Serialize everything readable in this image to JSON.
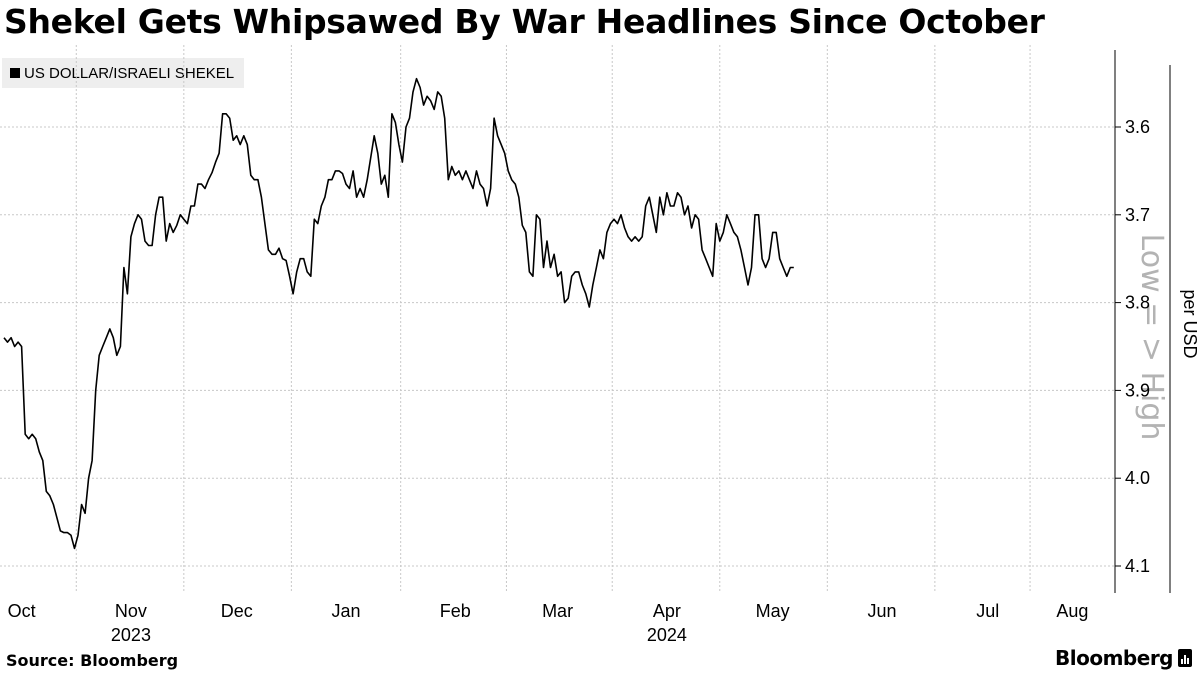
{
  "title": "Shekel Gets Whipsawed By War Headlines Since October",
  "legend": {
    "label": "US DOLLAR/ISRAELI SHEKEL",
    "color": "#000000"
  },
  "source": "Source: Bloomberg",
  "brand": "Bloomberg",
  "chart_data": {
    "type": "line",
    "title": "Shekel Gets Whipsawed By War Headlines Since October",
    "ylabel": "per USD",
    "ylabel_annotation": "Low = > High",
    "y_inverted": true,
    "ylim": [
      3.52,
      4.12
    ],
    "yticks": [
      3.6,
      3.7,
      3.8,
      3.9,
      4.0,
      4.1
    ],
    "xlim": [
      0,
      308
    ],
    "x_ticks": [
      {
        "x": 5,
        "label": "Oct"
      },
      {
        "x": 36,
        "label": "Nov"
      },
      {
        "x": 66,
        "label": "Dec"
      },
      {
        "x": 97,
        "label": "Jan"
      },
      {
        "x": 128,
        "label": "Feb"
      },
      {
        "x": 157,
        "label": "Mar"
      },
      {
        "x": 188,
        "label": "Apr"
      },
      {
        "x": 218,
        "label": "May"
      },
      {
        "x": 249,
        "label": "Jun"
      },
      {
        "x": 279,
        "label": "Jul"
      },
      {
        "x": 303,
        "label": "Aug"
      }
    ],
    "year_labels": [
      {
        "x": 36,
        "label": "2023"
      },
      {
        "x": 188,
        "label": "2024"
      }
    ],
    "grid": true,
    "series": [
      {
        "name": "US DOLLAR/ISRAELI SHEKEL",
        "color": "#000000",
        "points": [
          [
            0,
            3.84
          ],
          [
            1,
            3.845
          ],
          [
            2,
            3.84
          ],
          [
            3,
            3.85
          ],
          [
            4,
            3.845
          ],
          [
            5,
            3.85
          ],
          [
            6,
            3.95
          ],
          [
            7,
            3.955
          ],
          [
            8,
            3.95
          ],
          [
            9,
            3.955
          ],
          [
            10,
            3.97
          ],
          [
            11,
            3.98
          ],
          [
            12,
            4.015
          ],
          [
            13,
            4.02
          ],
          [
            14,
            4.03
          ],
          [
            15,
            4.045
          ],
          [
            16,
            4.06
          ],
          [
            17,
            4.062
          ],
          [
            18,
            4.062
          ],
          [
            19,
            4.065
          ],
          [
            20,
            4.08
          ],
          [
            21,
            4.065
          ],
          [
            22,
            4.03
          ],
          [
            23,
            4.04
          ],
          [
            24,
            4.0
          ],
          [
            25,
            3.98
          ],
          [
            26,
            3.9
          ],
          [
            27,
            3.86
          ],
          [
            28,
            3.85
          ],
          [
            29,
            3.84
          ],
          [
            30,
            3.83
          ],
          [
            31,
            3.84
          ],
          [
            32,
            3.86
          ],
          [
            33,
            3.85
          ],
          [
            34,
            3.76
          ],
          [
            35,
            3.79
          ],
          [
            36,
            3.725
          ],
          [
            37,
            3.71
          ],
          [
            38,
            3.7
          ],
          [
            39,
            3.705
          ],
          [
            40,
            3.73
          ],
          [
            41,
            3.735
          ],
          [
            42,
            3.735
          ],
          [
            43,
            3.7
          ],
          [
            44,
            3.68
          ],
          [
            45,
            3.68
          ],
          [
            46,
            3.73
          ],
          [
            47,
            3.71
          ],
          [
            48,
            3.72
          ],
          [
            49,
            3.712
          ],
          [
            50,
            3.7
          ],
          [
            51,
            3.705
          ],
          [
            52,
            3.71
          ],
          [
            53,
            3.69
          ],
          [
            54,
            3.69
          ],
          [
            55,
            3.665
          ],
          [
            56,
            3.665
          ],
          [
            57,
            3.67
          ],
          [
            58,
            3.66
          ],
          [
            59,
            3.652
          ],
          [
            60,
            3.64
          ],
          [
            61,
            3.63
          ],
          [
            62,
            3.585
          ],
          [
            63,
            3.585
          ],
          [
            64,
            3.59
          ],
          [
            65,
            3.615
          ],
          [
            66,
            3.61
          ],
          [
            67,
            3.62
          ],
          [
            68,
            3.61
          ],
          [
            69,
            3.62
          ],
          [
            70,
            3.655
          ],
          [
            71,
            3.66
          ],
          [
            72,
            3.66
          ],
          [
            73,
            3.68
          ],
          [
            74,
            3.71
          ],
          [
            75,
            3.74
          ],
          [
            76,
            3.745
          ],
          [
            77,
            3.745
          ],
          [
            78,
            3.738
          ],
          [
            79,
            3.75
          ],
          [
            80,
            3.752
          ],
          [
            81,
            3.77
          ],
          [
            82,
            3.79
          ],
          [
            83,
            3.765
          ],
          [
            84,
            3.75
          ],
          [
            85,
            3.75
          ],
          [
            86,
            3.765
          ],
          [
            87,
            3.77
          ],
          [
            88,
            3.705
          ],
          [
            89,
            3.71
          ],
          [
            90,
            3.69
          ],
          [
            91,
            3.68
          ],
          [
            92,
            3.66
          ],
          [
            93,
            3.66
          ],
          [
            94,
            3.65
          ],
          [
            95,
            3.65
          ],
          [
            96,
            3.653
          ],
          [
            97,
            3.665
          ],
          [
            98,
            3.67
          ],
          [
            99,
            3.65
          ],
          [
            100,
            3.68
          ],
          [
            101,
            3.67
          ],
          [
            102,
            3.68
          ],
          [
            103,
            3.66
          ],
          [
            104,
            3.635
          ],
          [
            105,
            3.61
          ],
          [
            106,
            3.63
          ],
          [
            107,
            3.665
          ],
          [
            108,
            3.655
          ],
          [
            109,
            3.68
          ],
          [
            110,
            3.585
          ],
          [
            111,
            3.595
          ],
          [
            112,
            3.62
          ],
          [
            113,
            3.64
          ],
          [
            114,
            3.6
          ],
          [
            115,
            3.59
          ],
          [
            116,
            3.56
          ],
          [
            117,
            3.545
          ],
          [
            118,
            3.555
          ],
          [
            119,
            3.575
          ],
          [
            120,
            3.565
          ],
          [
            121,
            3.57
          ],
          [
            122,
            3.58
          ],
          [
            123,
            3.56
          ],
          [
            124,
            3.565
          ],
          [
            125,
            3.59
          ],
          [
            126,
            3.66
          ],
          [
            127,
            3.645
          ],
          [
            128,
            3.655
          ],
          [
            129,
            3.65
          ],
          [
            130,
            3.66
          ],
          [
            131,
            3.65
          ],
          [
            132,
            3.66
          ],
          [
            133,
            3.67
          ],
          [
            134,
            3.65
          ],
          [
            135,
            3.665
          ],
          [
            136,
            3.67
          ],
          [
            137,
            3.69
          ],
          [
            138,
            3.67
          ],
          [
            139,
            3.59
          ],
          [
            140,
            3.61
          ],
          [
            141,
            3.62
          ],
          [
            142,
            3.63
          ],
          [
            143,
            3.65
          ],
          [
            144,
            3.66
          ],
          [
            145,
            3.665
          ],
          [
            146,
            3.68
          ],
          [
            147,
            3.712
          ],
          [
            148,
            3.72
          ],
          [
            149,
            3.765
          ],
          [
            150,
            3.77
          ],
          [
            151,
            3.7
          ],
          [
            152,
            3.705
          ],
          [
            153,
            3.76
          ],
          [
            154,
            3.73
          ],
          [
            155,
            3.76
          ],
          [
            156,
            3.745
          ],
          [
            157,
            3.77
          ],
          [
            158,
            3.765
          ],
          [
            159,
            3.8
          ],
          [
            160,
            3.795
          ],
          [
            161,
            3.77
          ],
          [
            162,
            3.765
          ],
          [
            163,
            3.765
          ],
          [
            164,
            3.78
          ],
          [
            165,
            3.79
          ],
          [
            166,
            3.805
          ],
          [
            167,
            3.78
          ],
          [
            168,
            3.76
          ],
          [
            169,
            3.74
          ],
          [
            170,
            3.75
          ],
          [
            171,
            3.72
          ],
          [
            172,
            3.71
          ],
          [
            173,
            3.705
          ],
          [
            174,
            3.71
          ],
          [
            175,
            3.7
          ],
          [
            176,
            3.715
          ],
          [
            177,
            3.725
          ],
          [
            178,
            3.73
          ],
          [
            179,
            3.725
          ],
          [
            180,
            3.73
          ],
          [
            181,
            3.725
          ],
          [
            182,
            3.69
          ],
          [
            183,
            3.68
          ],
          [
            184,
            3.7
          ],
          [
            185,
            3.72
          ],
          [
            186,
            3.68
          ],
          [
            187,
            3.7
          ],
          [
            188,
            3.675
          ],
          [
            189,
            3.69
          ],
          [
            190,
            3.69
          ],
          [
            191,
            3.675
          ],
          [
            192,
            3.68
          ],
          [
            193,
            3.7
          ],
          [
            194,
            3.69
          ],
          [
            195,
            3.715
          ],
          [
            196,
            3.7
          ],
          [
            197,
            3.705
          ],
          [
            198,
            3.74
          ],
          [
            199,
            3.75
          ],
          [
            200,
            3.76
          ],
          [
            201,
            3.77
          ],
          [
            202,
            3.71
          ],
          [
            203,
            3.73
          ],
          [
            204,
            3.72
          ],
          [
            205,
            3.7
          ],
          [
            206,
            3.71
          ],
          [
            207,
            3.72
          ],
          [
            208,
            3.725
          ],
          [
            209,
            3.74
          ],
          [
            210,
            3.76
          ],
          [
            211,
            3.78
          ],
          [
            212,
            3.76
          ],
          [
            213,
            3.7
          ],
          [
            214,
            3.7
          ],
          [
            215,
            3.75
          ],
          [
            216,
            3.76
          ],
          [
            217,
            3.75
          ],
          [
            218,
            3.72
          ],
          [
            219,
            3.72
          ],
          [
            220,
            3.75
          ],
          [
            221,
            3.76
          ],
          [
            222,
            3.77
          ],
          [
            223,
            3.76
          ],
          [
            224,
            3.76
          ]
        ]
      }
    ]
  }
}
